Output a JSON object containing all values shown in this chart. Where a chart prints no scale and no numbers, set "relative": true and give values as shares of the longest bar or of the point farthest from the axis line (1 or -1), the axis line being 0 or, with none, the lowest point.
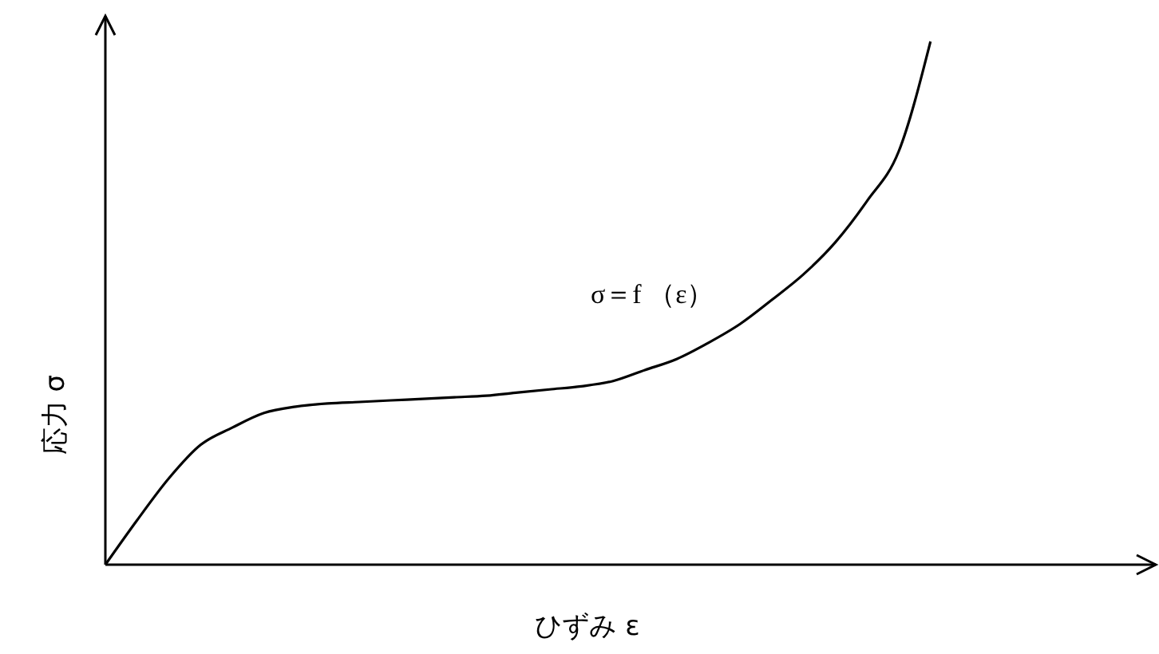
{
  "chart_data": {
    "type": "line",
    "relative": true,
    "xlabel": "ひずみ ε",
    "ylabel": "応力 σ",
    "annotations": [
      "σ＝f （ε）"
    ],
    "line_style": "solid",
    "categories": [
      null,
      null,
      null,
      null,
      null,
      null,
      null,
      null,
      null,
      null,
      null,
      null,
      null,
      null,
      null,
      null,
      null,
      null,
      null,
      null,
      null,
      null,
      null,
      null,
      null,
      null,
      null,
      null,
      null,
      null,
      null,
      null,
      null,
      null
    ],
    "series": [
      {
        "color": "#000000",
        "values": [
          0,
          0.085,
          0.165,
          0.229,
          0.262,
          0.29,
          0.302,
          0.308,
          0.311,
          0.314,
          0.317,
          0.32,
          0.323,
          0.329,
          0.335,
          0.341,
          0.351,
          0.372,
          0.393,
          0.424,
          0.46,
          0.506,
          0.555,
          0.616,
          0.695,
          0.79,
          1,
          null,
          null,
          null,
          null,
          null,
          null,
          null
        ]
      }
    ]
  }
}
